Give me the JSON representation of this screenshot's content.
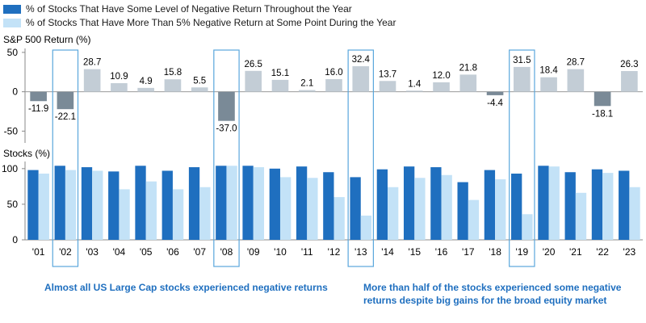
{
  "legend": {
    "series1": "% of Stocks That Have Some Level of Negative Return Throughout the Year",
    "series2": "% of Stocks That Have More Than 5% Negative Return at Some Point During the Year"
  },
  "colors": {
    "series1": "#1f6fbf",
    "series2": "#c3e2f7",
    "sp_positive": "#c3cdd6",
    "sp_negative": "#7a8a97",
    "highlight": "#5aa7dc"
  },
  "notes": {
    "left": "Almost all US Large Cap stocks experienced negative returns",
    "right": "More than half of the stocks experienced some negative returns despite big gains for the broad equity market"
  },
  "chart_data": [
    {
      "type": "bar",
      "title": "S&P 500 Return (%)",
      "categories": [
        "'01",
        "'02",
        "'03",
        "'04",
        "'05",
        "'06",
        "'07",
        "'08",
        "'09",
        "'10",
        "'11",
        "'12",
        "'13",
        "'14",
        "'15",
        "'16",
        "'17",
        "'18",
        "'19",
        "'20",
        "'21",
        "'22",
        "'23"
      ],
      "values": [
        -11.9,
        -22.1,
        28.7,
        10.9,
        4.9,
        15.8,
        5.5,
        -37.0,
        26.5,
        15.1,
        2.1,
        16.0,
        32.4,
        13.7,
        1.4,
        12.0,
        21.8,
        -4.4,
        31.5,
        18.4,
        28.7,
        -18.1,
        26.3
      ],
      "labels": [
        "-11.9",
        "-22.1",
        "28.7",
        "10.9",
        "4.9",
        "15.8",
        "5.5",
        "-37.0",
        "26.5",
        "15.1",
        "2.1",
        "16.0",
        "32.4",
        "13.7",
        "1.4",
        "12.0",
        "21.8",
        "-4.4",
        "31.5",
        "18.4",
        "28.7",
        "-18.1",
        "26.3"
      ],
      "yticks": [
        "50",
        "0",
        "-50"
      ],
      "ylim": [
        -65,
        55
      ]
    },
    {
      "type": "bar",
      "title": "Stocks (%)",
      "categories": [
        "'01",
        "'02",
        "'03",
        "'04",
        "'05",
        "'06",
        "'07",
        "'08",
        "'09",
        "'10",
        "'11",
        "'12",
        "'13",
        "'14",
        "'15",
        "'16",
        "'17",
        "'18",
        "'19",
        "'20",
        "'21",
        "'22",
        "'23"
      ],
      "series": [
        {
          "name": "% of Stocks That Have Some Level of Negative Return Throughout the Year",
          "values": [
            98,
            104,
            102,
            96,
            104,
            97,
            102,
            104,
            104,
            100,
            103,
            95,
            88,
            99,
            103,
            102,
            81,
            98,
            93,
            104,
            95,
            99,
            97
          ]
        },
        {
          "name": "% of Stocks That Have More Than 5% Negative Return at Some Point During the Year",
          "values": [
            93,
            98,
            97,
            71,
            82,
            71,
            74,
            104,
            102,
            88,
            87,
            60,
            34,
            74,
            87,
            91,
            56,
            85,
            36,
            103,
            66,
            94,
            74
          ]
        }
      ],
      "yticks": [
        "100",
        "50",
        "0"
      ],
      "ylim": [
        0,
        110
      ]
    }
  ],
  "highlighted_years": [
    "'02",
    "'08",
    "'13",
    "'19"
  ]
}
